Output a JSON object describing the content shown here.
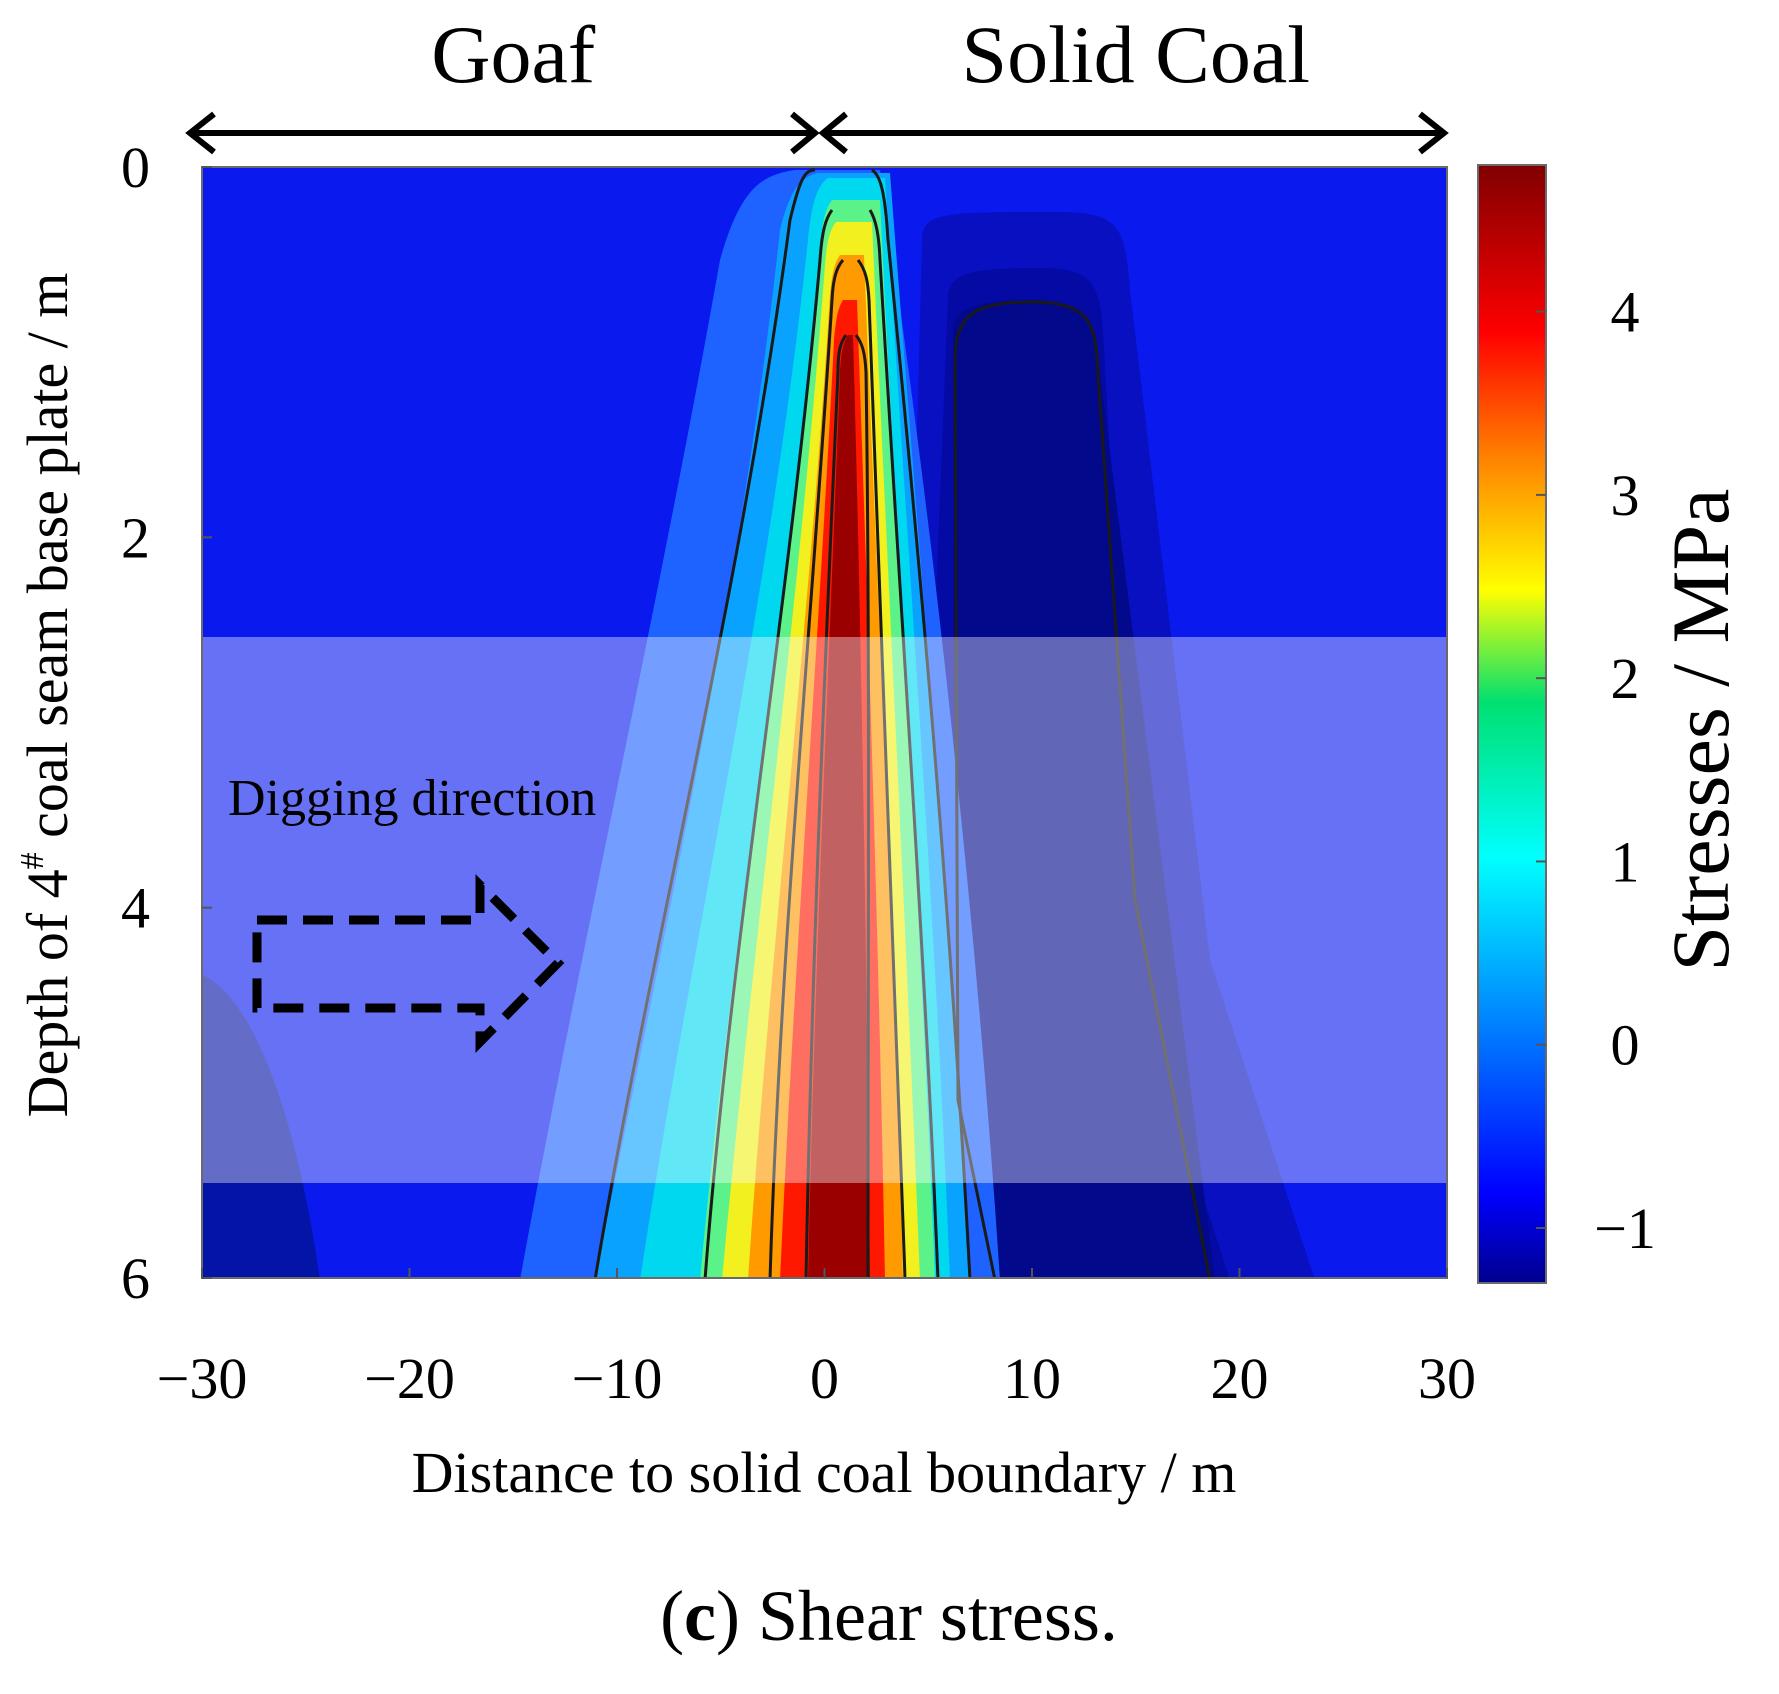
{
  "chart_data": {
    "type": "heatmap",
    "subtitle": "Shear stress.",
    "panel_label": "c",
    "xlabel": "Distance to solid coal boundary / m",
    "ylabel_prefix": "Depth of 4",
    "ylabel_superscript": "#",
    "ylabel_suffix": " coal seam base plate / m",
    "colorbar_label": "Stresses / MPa",
    "xlim": [
      -30,
      30
    ],
    "ylim": [
      0,
      6
    ],
    "y_inverted": true,
    "x_ticks": [
      -30,
      -20,
      -10,
      0,
      10,
      20,
      30
    ],
    "x_tick_labels": [
      "−30",
      "−20",
      "−10",
      "0",
      "10",
      "20",
      "30"
    ],
    "y_ticks": [
      0,
      2,
      4,
      6
    ],
    "y_tick_labels": [
      "0",
      "2",
      "4",
      "6"
    ],
    "colorbar_range": [
      -1.3,
      4.8
    ],
    "colorbar_ticks": [
      -1,
      0,
      1,
      2,
      3,
      4
    ],
    "colorbar_tick_labels": [
      "−1",
      "0",
      "1",
      "2",
      "3",
      "4"
    ],
    "region_labels": [
      {
        "text": "Goaf",
        "x_from": -30,
        "x_to": 0
      },
      {
        "text": "Solid Coal",
        "x_from": 0,
        "x_to": 30
      }
    ],
    "highlight_band": {
      "depth_from": 2.52,
      "depth_to": 5.45
    },
    "annotation": {
      "text": "Digging direction",
      "arrow_direction": "right"
    },
    "peak_zone": {
      "center_distance": 1.6,
      "max_stress": 4.8
    },
    "low_zone": {
      "center_distance": 11,
      "min_stress": -1.3
    },
    "stress_profile_depth_6": {
      "distance": [
        -30,
        -25,
        -14,
        -10,
        -6,
        -3,
        0,
        2,
        4,
        6,
        9,
        12,
        18,
        23,
        30
      ],
      "stress": [
        -1.1,
        -0.9,
        -0.5,
        0.5,
        1.5,
        3.0,
        4.6,
        4.8,
        3.0,
        0.5,
        -1.2,
        -1.3,
        -1.2,
        -0.9,
        -0.5
      ]
    },
    "colormap": [
      "#00008f",
      "#0000ff",
      "#00ffff",
      "#ffff00",
      "#ff0000",
      "#800000"
    ]
  }
}
